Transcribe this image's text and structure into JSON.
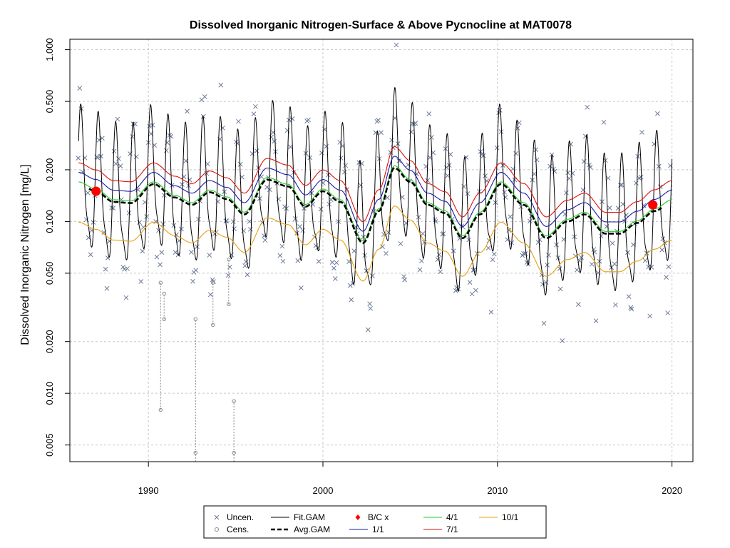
{
  "chart_data": {
    "type": "line",
    "title": "Dissolved Inorganic Nitrogen-Surface & Above Pycnocline at MAT0078",
    "xlabel": "",
    "ylabel": "Dissolved Inorganic Nitrogen [mg/L]",
    "xlim": [
      1985.5,
      2021.2
    ],
    "ylim": [
      0.004,
      1.15
    ],
    "y_scale": "log",
    "grid": true,
    "x_ticks": [
      1990,
      2000,
      2010,
      2020
    ],
    "x_tick_labels": [
      "1990",
      "2000",
      "2010",
      "2020"
    ],
    "y_ticks": [
      0.005,
      0.01,
      0.02,
      0.05,
      0.1,
      0.2,
      0.5,
      1.0
    ],
    "y_tick_labels": [
      "0.005",
      "0.010",
      "0.020",
      "0.050",
      "0.100",
      "0.200",
      "0.500",
      "1.000"
    ],
    "legend_position": "bottom",
    "legend": [
      {
        "label": "Uncen.",
        "kind": "x-marker",
        "color": "#6b7a99"
      },
      {
        "label": "Cens.",
        "kind": "circle-marker",
        "color": "#888888"
      },
      {
        "label": "Fit.GAM",
        "kind": "line",
        "color": "#000000"
      },
      {
        "label": "Avg.GAM",
        "kind": "dashed-line",
        "color": "#000000"
      },
      {
        "label": "B/C x",
        "kind": "diamond-marker",
        "color": "#ff0000"
      },
      {
        "label": "1/1",
        "kind": "line",
        "color": "#1a1aa6"
      },
      {
        "label": "4/1",
        "kind": "line",
        "color": "#22cc22"
      },
      {
        "label": "7/1",
        "kind": "line",
        "color": "#dd1111"
      },
      {
        "label": "10/1",
        "kind": "line",
        "color": "#e6a010"
      }
    ],
    "avg_gam": {
      "x": [
        1986.0,
        1987.0,
        1988.0,
        1989.0,
        1990.3,
        1991.5,
        1992.5,
        1993.5,
        1994.5,
        1995.5,
        1996.8,
        1998.0,
        1999.0,
        2000.0,
        2001.0,
        2002.3,
        2003.2,
        2004.1,
        2005.0,
        2006.0,
        2007.0,
        2008.0,
        2009.0,
        2010.2,
        2011.5,
        2012.8,
        2014.0,
        2015.0,
        2016.2,
        2017.0,
        2018.0,
        2019.0,
        2020.0
      ],
      "y": [
        0.165,
        0.15,
        0.13,
        0.128,
        0.165,
        0.138,
        0.125,
        0.148,
        0.135,
        0.11,
        0.175,
        0.16,
        0.122,
        0.15,
        0.13,
        0.075,
        0.115,
        0.205,
        0.17,
        0.125,
        0.112,
        0.08,
        0.11,
        0.165,
        0.125,
        0.08,
        0.1,
        0.11,
        0.085,
        0.085,
        0.098,
        0.115,
        0.13
      ]
    },
    "series_seasonal": [
      {
        "name": "1/1",
        "color": "#1a1aa6",
        "factor": 1.17
      },
      {
        "name": "4/1",
        "color": "#22cc22",
        "factor": 1.03
      },
      {
        "name": "7/1",
        "color": "#dd1111",
        "factor": 1.33
      },
      {
        "name": "10/1",
        "color": "#e6a010",
        "factor": 0.6
      }
    ],
    "bc_points": [
      {
        "x": 1987.0,
        "y": 0.15
      },
      {
        "x": 2018.9,
        "y": 0.125
      }
    ],
    "censored_segments": [
      {
        "x": 1990.7,
        "y_low": 0.008,
        "y_high": 0.044
      },
      {
        "x": 1990.9,
        "y_low": 0.027,
        "y_high": 0.038
      },
      {
        "x": 1992.7,
        "y_low": 0.004,
        "y_high": 0.027
      },
      {
        "x": 1993.7,
        "y_low": 0.025,
        "y_high": 0.044
      },
      {
        "x": 1994.6,
        "y_low": 0.033,
        "y_high": 0.06
      },
      {
        "x": 1994.9,
        "y_low": 0.004,
        "y_high": 0.009
      }
    ]
  }
}
